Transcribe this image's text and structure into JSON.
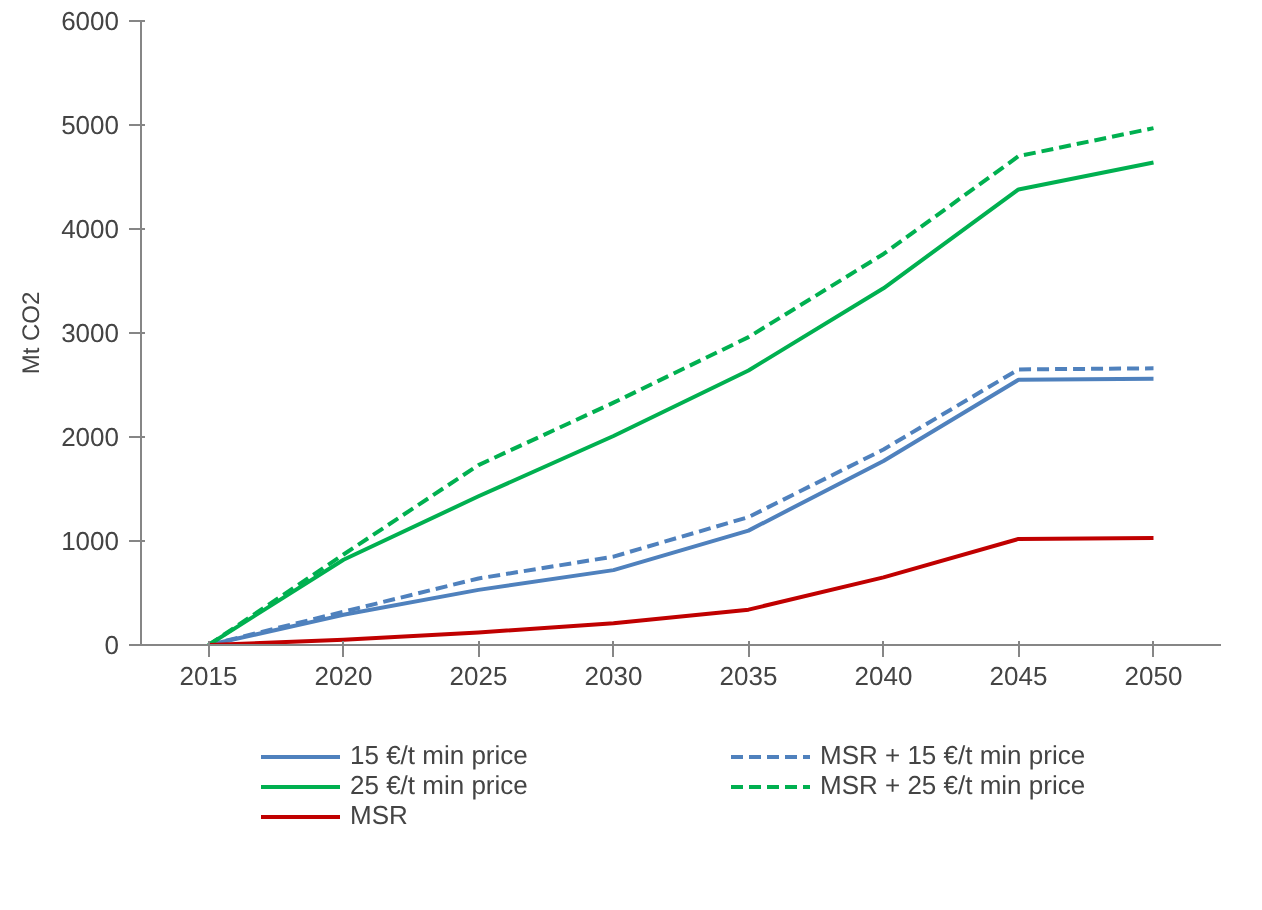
{
  "chart_data": {
    "type": "line",
    "ylabel": "Mt CO2",
    "categories": [
      "2015",
      "2020",
      "2025",
      "2030",
      "2035",
      "2040",
      "2045",
      "2050"
    ],
    "ylim": [
      0,
      6000
    ],
    "yticks": [
      0,
      1000,
      2000,
      3000,
      4000,
      5000,
      6000
    ],
    "grid": false,
    "legend": "bottom",
    "marker": "none",
    "series": [
      {
        "name": "15 €/t min price",
        "color": "#4f81bd",
        "line_style": "solid",
        "values": [
          0,
          290,
          530,
          720,
          1100,
          1770,
          2550,
          2560
        ]
      },
      {
        "name": "MSR + 15 €/t min price",
        "color": "#4f81bd",
        "line_style": "dashed",
        "values": [
          0,
          320,
          640,
          850,
          1230,
          1880,
          2650,
          2660
        ]
      },
      {
        "name": "25 €/t min price",
        "color": "#00b050",
        "line_style": "solid",
        "values": [
          0,
          820,
          1430,
          2010,
          2640,
          3430,
          4380,
          4640
        ]
      },
      {
        "name": "MSR + 25 €/t min price",
        "color": "#00b050",
        "line_style": "dashed",
        "values": [
          0,
          870,
          1730,
          2330,
          2960,
          3760,
          4700,
          4970
        ]
      },
      {
        "name": "MSR",
        "color": "#c00000",
        "line_style": "solid",
        "values": [
          0,
          50,
          120,
          210,
          340,
          650,
          1020,
          1030
        ]
      }
    ]
  }
}
